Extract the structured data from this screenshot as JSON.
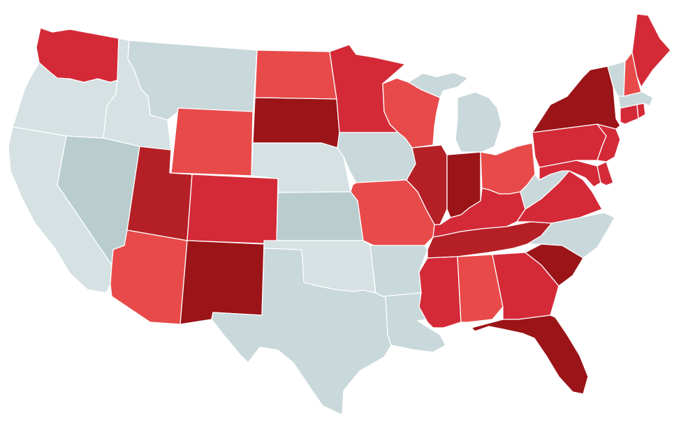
{
  "map": {
    "type": "choropleth",
    "region": "United States",
    "legend": null,
    "palette": {
      "none": "#c9d8db",
      "light": "#e84a4a",
      "medium": "#d42a38",
      "strong": "#b52026",
      "darkest": "#9b1418",
      "grey_light": "#d5e1e3",
      "grey_mid": "#b9cdcf"
    },
    "states": {
      "WA": "medium",
      "OR": "grey_light",
      "CA": "grey_light",
      "ID": "grey_light",
      "NV": "grey_mid",
      "MT": "none",
      "WY": "light",
      "UT": "strong",
      "AZ": "light",
      "CO": "medium",
      "NM": "darkest",
      "ND": "light",
      "SD": "darkest",
      "NE": "grey_light",
      "KS": "grey_mid",
      "OK": "grey_light",
      "TX": "none",
      "MN": "medium",
      "IA": "none",
      "MO": "light",
      "AR": "none",
      "LA": "none",
      "WI": "light",
      "IL": "strong",
      "MI": "none",
      "IN": "darkest",
      "OH": "light",
      "KY": "medium",
      "TN": "strong",
      "MS": "medium",
      "AL": "light",
      "GA": "medium",
      "FL": "darkest",
      "SC": "darkest",
      "NC": "none",
      "VA": "medium",
      "WV": "none",
      "MD": "medium",
      "DE": "medium",
      "PA": "medium",
      "NJ": "medium",
      "NY": "darkest",
      "CT": "medium",
      "RI": "medium",
      "MA": "none",
      "VT": "none",
      "NH": "light",
      "ME": "medium"
    }
  }
}
